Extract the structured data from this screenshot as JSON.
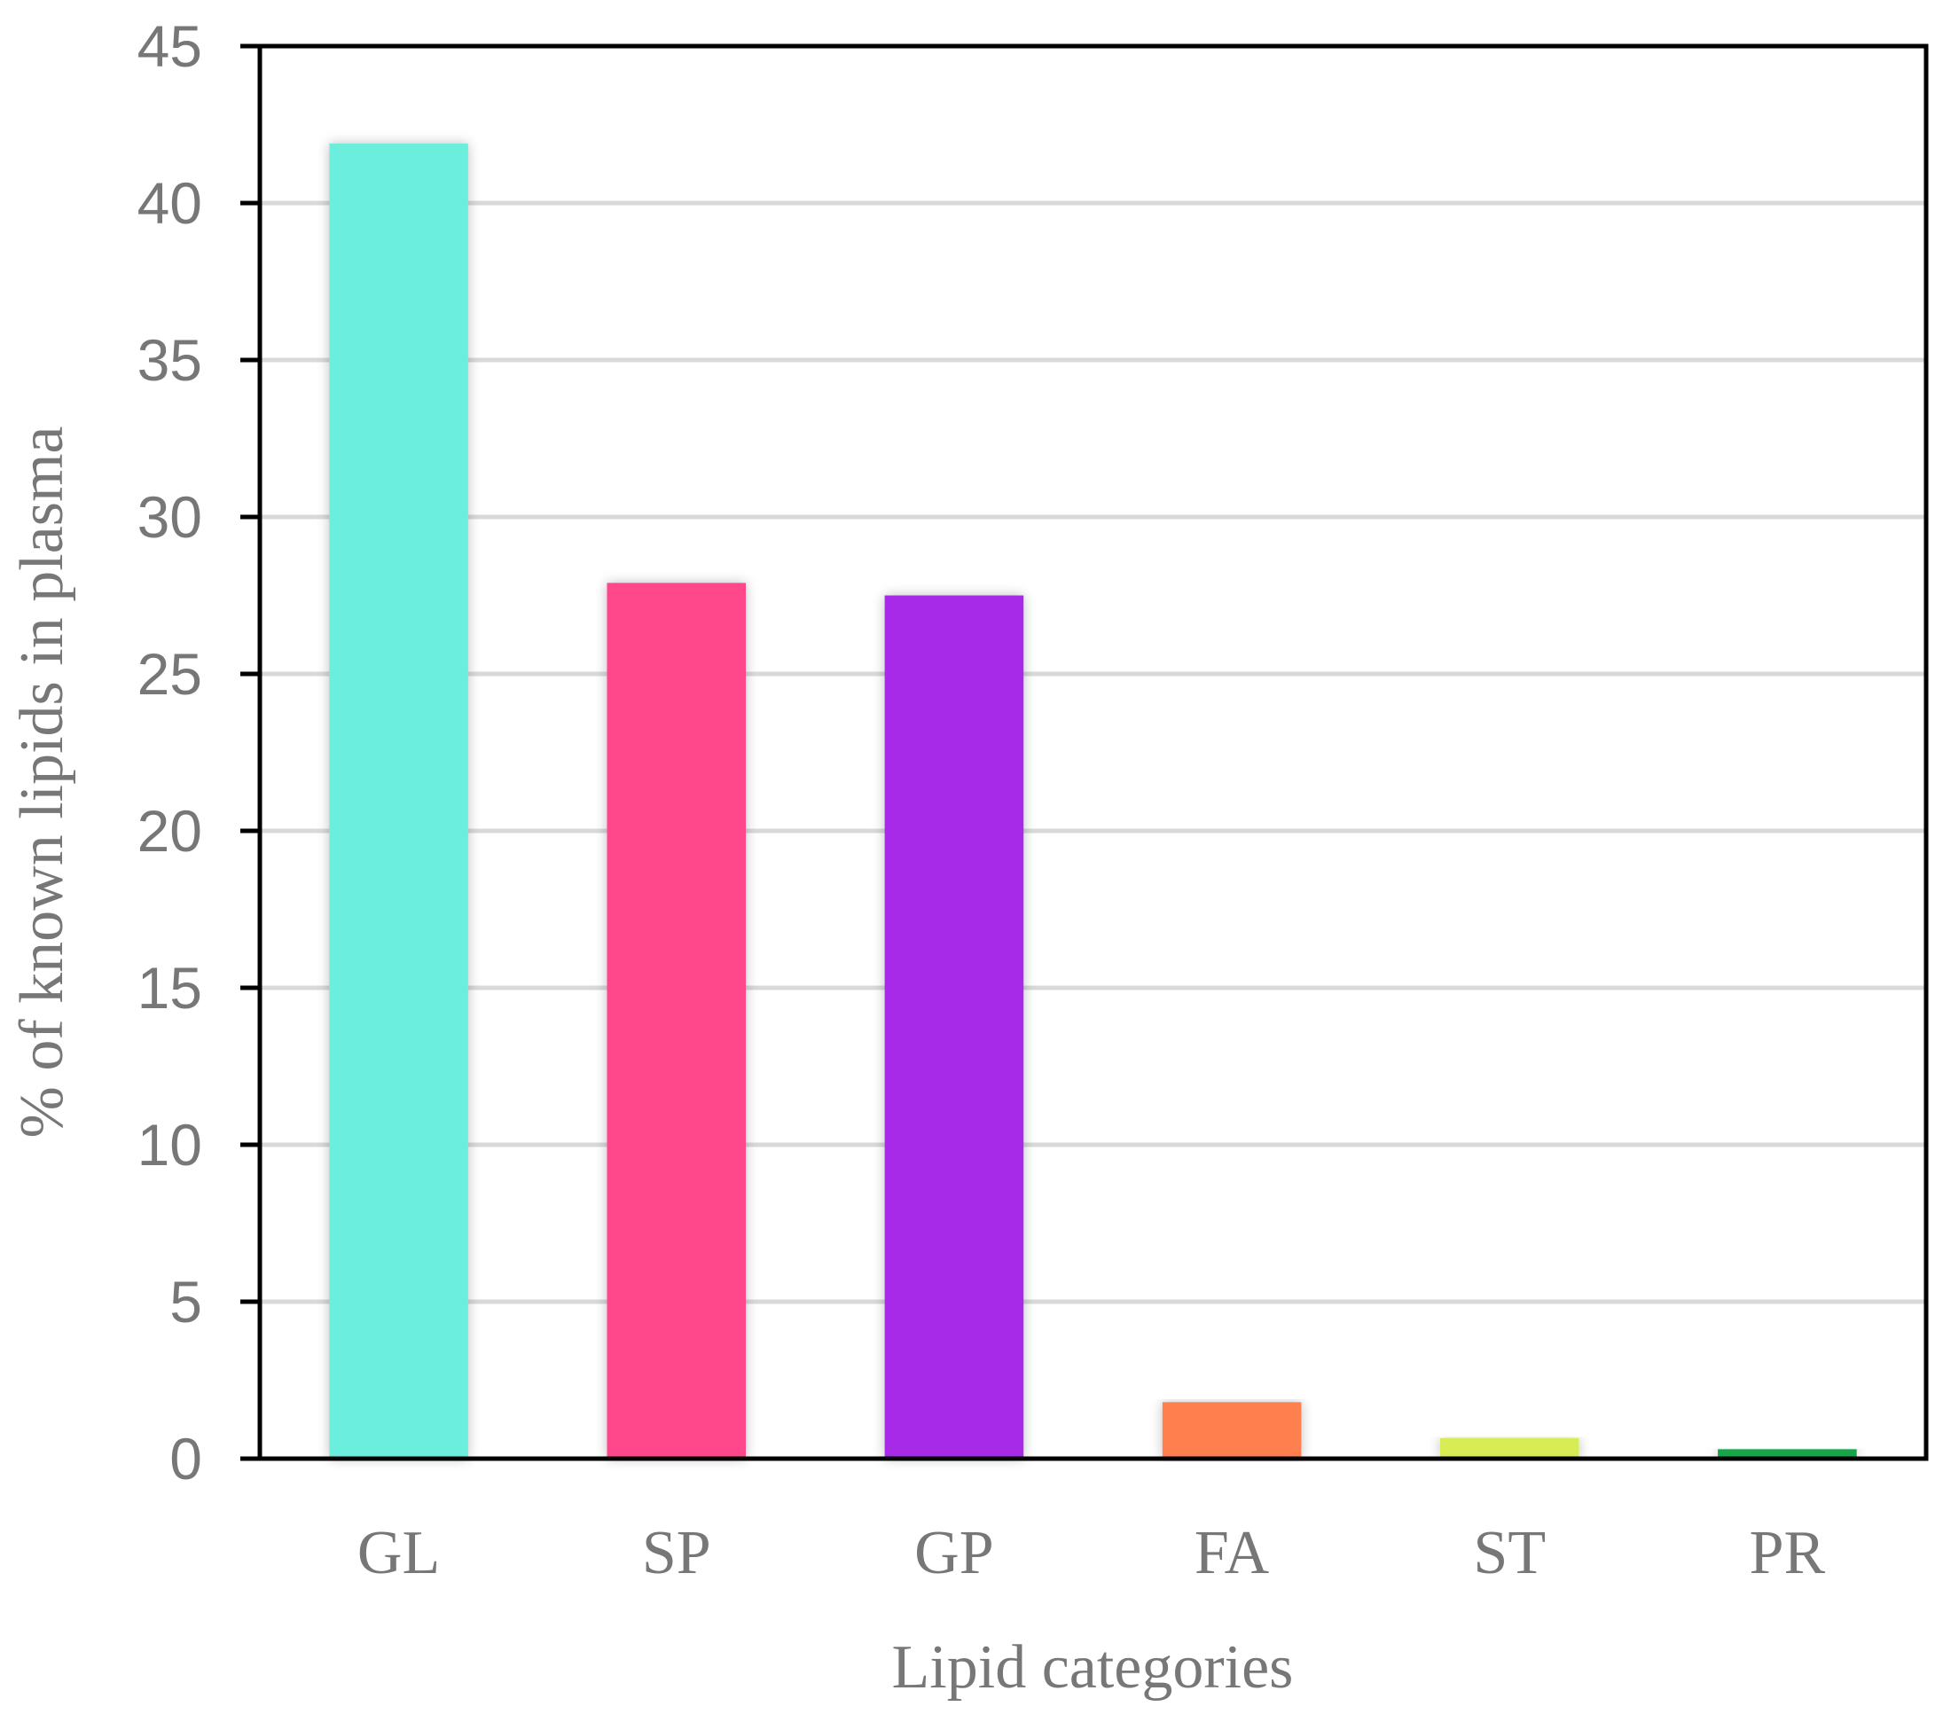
{
  "chart_data": {
    "type": "bar",
    "categories": [
      "GL",
      "SP",
      "GP",
      "FA",
      "ST",
      "PR"
    ],
    "values": [
      41.9,
      27.9,
      27.5,
      1.8,
      0.65,
      0.3
    ],
    "colors": [
      "#6ceedd",
      "#ff478c",
      "#a82ae9",
      "#ff7f4f",
      "#d8ed55",
      "#16a54a"
    ],
    "xlabel": "Lipid categories",
    "ylabel": "% of known lipids in plasma",
    "ylim": [
      0,
      45
    ],
    "yticks": [
      "0",
      "5",
      "10",
      "15",
      "20",
      "25",
      "30",
      "35",
      "40",
      "45"
    ],
    "grid": true
  }
}
